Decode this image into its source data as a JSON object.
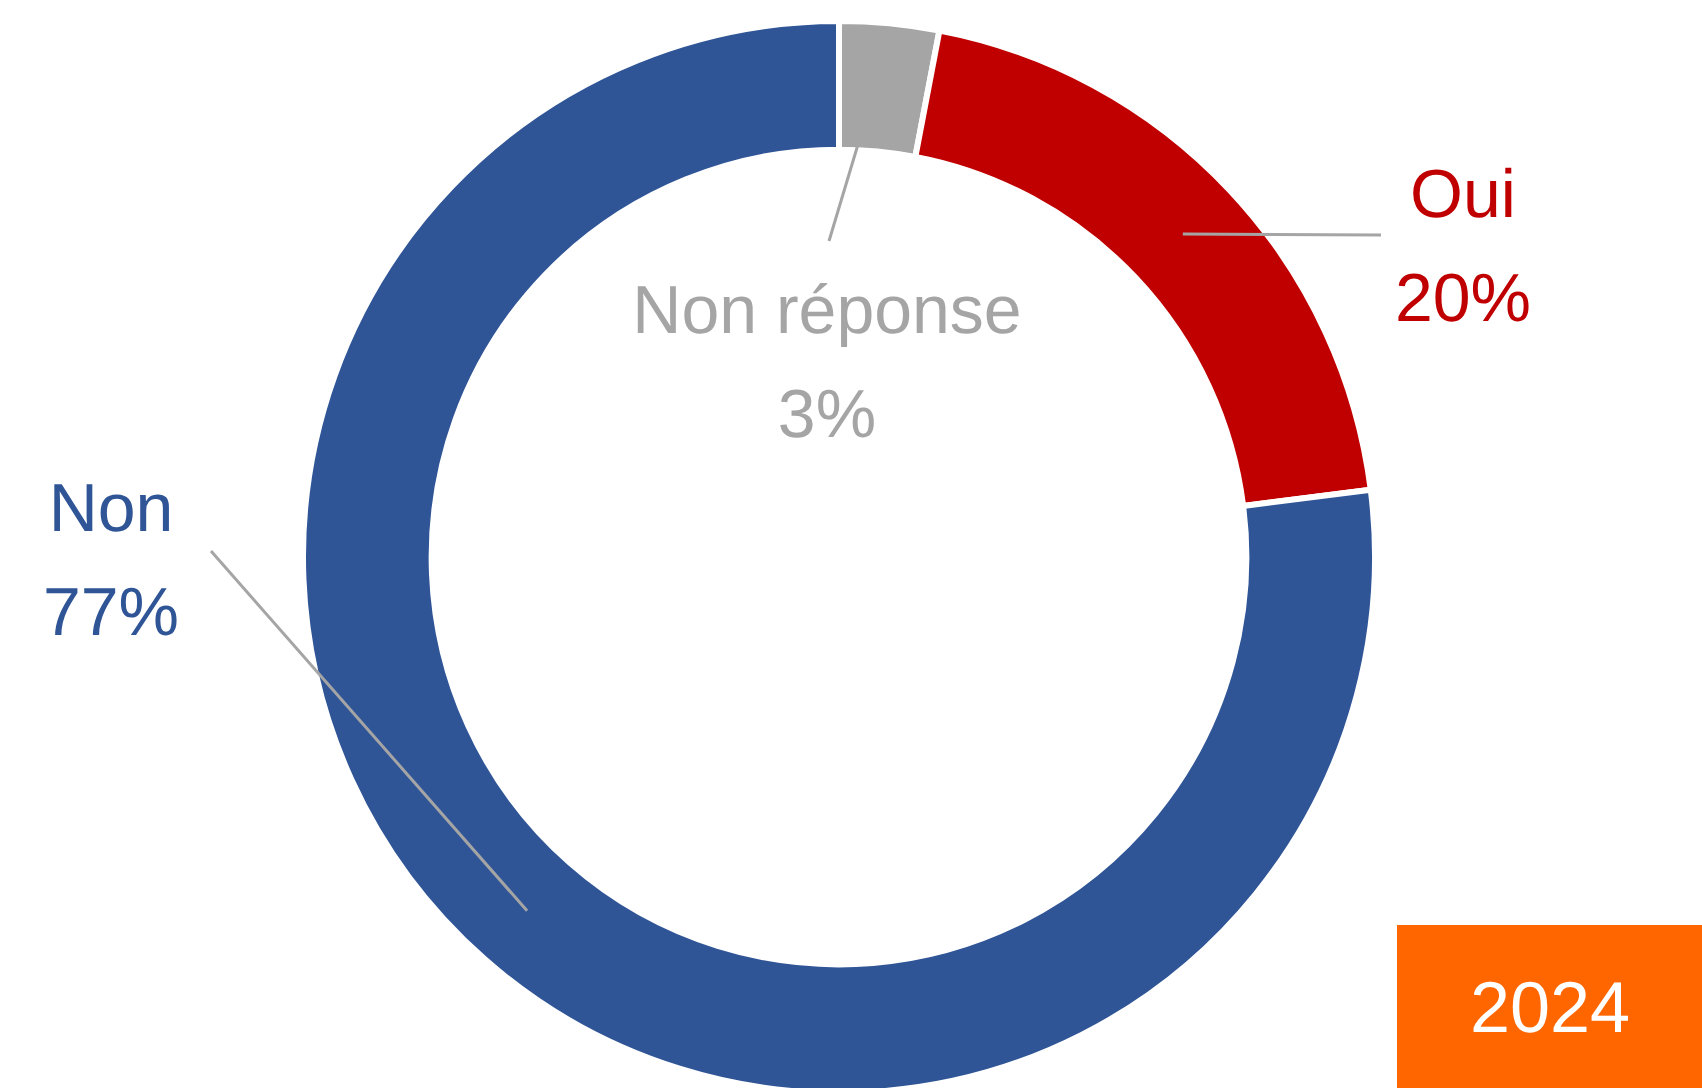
{
  "chart_data": {
    "type": "donut",
    "categories": [
      "Non réponse",
      "Oui",
      "Non"
    ],
    "values": [
      3,
      20,
      77
    ],
    "colors": [
      "#a5a5a5",
      "#c00000",
      "#2f5597"
    ],
    "value_labels": [
      "3%",
      "20%",
      "77%"
    ],
    "annotations": [
      "2024"
    ]
  }
}
